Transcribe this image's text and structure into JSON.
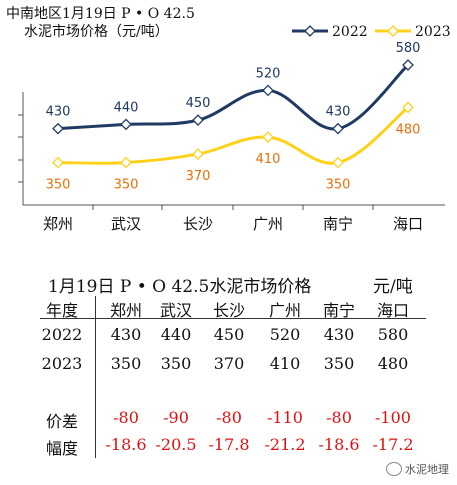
{
  "chart_data": {
    "type": "line",
    "title_line1": "中南地区1月19日  P • O 42.5",
    "title_line2": "水泥市场价格（元/吨）",
    "categories": [
      "郑州",
      "武汉",
      "长沙",
      "广州",
      "南宁",
      "海口"
    ],
    "series": [
      {
        "name": "2022",
        "values": [
          430,
          440,
          450,
          520,
          430,
          580
        ],
        "color": "#1f3a64"
      },
      {
        "name": "2023",
        "values": [
          350,
          350,
          370,
          410,
          350,
          480
        ],
        "color": "#ffd11a"
      }
    ],
    "label_colors": {
      "2022": "#1f3a64",
      "2023": "#e8700a"
    },
    "ylim": [
      250,
      620
    ],
    "legend": "top-right",
    "grid": false
  },
  "table": {
    "title": "1月19日 P • O 42.5水泥市场价格",
    "unit": "元/吨",
    "corner": "年度",
    "columns": [
      "郑州",
      "武汉",
      "长沙",
      "广州",
      "南宁",
      "海口"
    ],
    "rows": [
      {
        "label": "2022",
        "values": [
          "430",
          "440",
          "450",
          "520",
          "430",
          "580"
        ],
        "red": false
      },
      {
        "label": "2023",
        "values": [
          "350",
          "350",
          "370",
          "410",
          "350",
          "480"
        ],
        "red": false
      },
      {
        "label": "价差",
        "values": [
          "-80",
          "-90",
          "-80",
          "-110",
          "-80",
          "-100"
        ],
        "red": true
      },
      {
        "label": "幅度",
        "values": [
          "-18.6",
          "-20.5",
          "-17.8",
          "-21.2",
          "-18.6",
          "-17.2"
        ],
        "red": true
      }
    ]
  },
  "watermark": "水泥地理",
  "colors": {
    "red": "#e01010",
    "axis": "#333333"
  }
}
